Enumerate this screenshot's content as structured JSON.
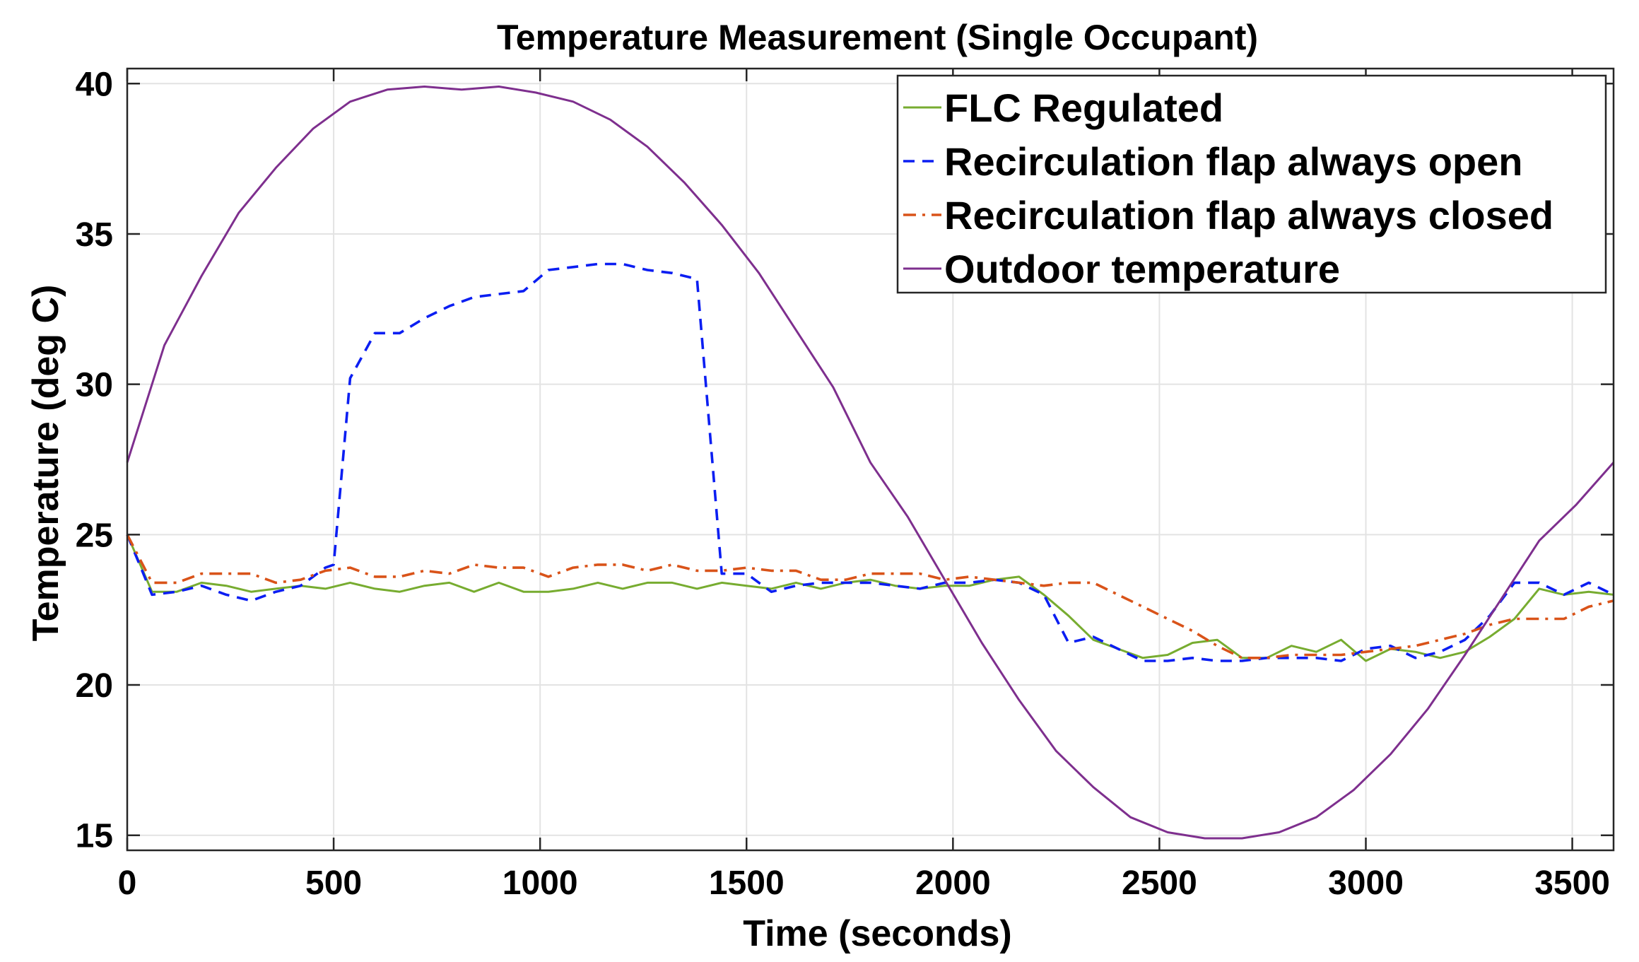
{
  "chart_data": {
    "type": "line",
    "title": "Temperature Measurement (Single Occupant)",
    "xlabel": "Time (seconds)",
    "ylabel": "Temperature (deg C)",
    "xlim": [
      0,
      3600
    ],
    "ylim": [
      14.5,
      40.5
    ],
    "xticks": [
      0,
      500,
      1000,
      1500,
      2000,
      2500,
      3000,
      3500
    ],
    "yticks": [
      15,
      20,
      25,
      30,
      35,
      40
    ],
    "grid": true,
    "legend_position": "top-right",
    "series": [
      {
        "name": "FLC Regulated",
        "color": "#77ac30",
        "style": "solid",
        "x": [
          0,
          60,
          120,
          180,
          240,
          300,
          360,
          420,
          480,
          540,
          600,
          660,
          720,
          780,
          840,
          900,
          960,
          1020,
          1080,
          1140,
          1200,
          1260,
          1320,
          1380,
          1440,
          1500,
          1560,
          1620,
          1680,
          1740,
          1800,
          1860,
          1920,
          1980,
          2040,
          2100,
          2160,
          2220,
          2280,
          2340,
          2400,
          2460,
          2520,
          2580,
          2640,
          2700,
          2760,
          2820,
          2880,
          2940,
          3000,
          3060,
          3120,
          3180,
          3240,
          3300,
          3360,
          3420,
          3480,
          3540,
          3600
        ],
        "y": [
          25.0,
          23.1,
          23.1,
          23.4,
          23.3,
          23.1,
          23.2,
          23.3,
          23.2,
          23.4,
          23.2,
          23.1,
          23.3,
          23.4,
          23.1,
          23.4,
          23.1,
          23.1,
          23.2,
          23.4,
          23.2,
          23.4,
          23.4,
          23.2,
          23.4,
          23.3,
          23.2,
          23.4,
          23.2,
          23.4,
          23.5,
          23.3,
          23.2,
          23.3,
          23.3,
          23.5,
          23.6,
          23.0,
          22.3,
          21.5,
          21.2,
          20.9,
          21.0,
          21.4,
          21.5,
          20.9,
          20.9,
          21.3,
          21.1,
          21.5,
          20.8,
          21.2,
          21.1,
          20.9,
          21.1,
          21.6,
          22.2,
          23.2,
          23.0,
          23.1,
          23.0
        ]
      },
      {
        "name": "Recirculation flap always open",
        "color": "#0b1ef2",
        "style": "dashed",
        "x": [
          0,
          60,
          120,
          180,
          240,
          300,
          360,
          420,
          480,
          500,
          540,
          600,
          660,
          720,
          780,
          840,
          900,
          960,
          1020,
          1080,
          1140,
          1200,
          1260,
          1320,
          1380,
          1440,
          1500,
          1560,
          1620,
          1680,
          1740,
          1800,
          1860,
          1920,
          1980,
          2040,
          2100,
          2160,
          2220,
          2280,
          2340,
          2400,
          2460,
          2520,
          2580,
          2640,
          2700,
          2760,
          2820,
          2880,
          2940,
          3000,
          3060,
          3120,
          3180,
          3240,
          3300,
          3360,
          3420,
          3480,
          3540,
          3600
        ],
        "y": [
          25.0,
          23.0,
          23.1,
          23.3,
          23.0,
          22.8,
          23.1,
          23.3,
          23.9,
          24.0,
          30.2,
          31.7,
          31.7,
          32.2,
          32.6,
          32.9,
          33.0,
          33.1,
          33.8,
          33.9,
          34.0,
          34.0,
          33.8,
          33.7,
          33.5,
          23.7,
          23.7,
          23.1,
          23.3,
          23.4,
          23.4,
          23.4,
          23.3,
          23.2,
          23.4,
          23.4,
          23.5,
          23.4,
          23.0,
          21.4,
          21.6,
          21.2,
          20.8,
          20.8,
          20.9,
          20.8,
          20.8,
          20.9,
          20.9,
          20.9,
          20.8,
          21.2,
          21.3,
          20.9,
          21.1,
          21.5,
          22.3,
          23.4,
          23.4,
          23.0,
          23.4,
          23.0
        ]
      },
      {
        "name": "Recirculation flap always closed",
        "color": "#d95319",
        "style": "dashdot",
        "x": [
          0,
          60,
          120,
          180,
          240,
          300,
          360,
          420,
          480,
          540,
          600,
          660,
          720,
          780,
          840,
          900,
          960,
          1020,
          1080,
          1140,
          1200,
          1260,
          1320,
          1380,
          1440,
          1500,
          1560,
          1620,
          1680,
          1740,
          1800,
          1860,
          1920,
          1980,
          2040,
          2100,
          2160,
          2220,
          2280,
          2340,
          2400,
          2460,
          2520,
          2580,
          2640,
          2700,
          2760,
          2820,
          2880,
          2940,
          3000,
          3060,
          3120,
          3180,
          3240,
          3300,
          3360,
          3420,
          3480,
          3540,
          3600
        ],
        "y": [
          25.0,
          23.4,
          23.4,
          23.7,
          23.7,
          23.7,
          23.4,
          23.5,
          23.8,
          23.9,
          23.6,
          23.6,
          23.8,
          23.7,
          24.0,
          23.9,
          23.9,
          23.6,
          23.9,
          24.0,
          24.0,
          23.8,
          24.0,
          23.8,
          23.8,
          23.9,
          23.8,
          23.8,
          23.5,
          23.5,
          23.7,
          23.7,
          23.7,
          23.5,
          23.6,
          23.5,
          23.4,
          23.3,
          23.4,
          23.4,
          23.0,
          22.6,
          22.2,
          21.8,
          21.3,
          20.9,
          20.9,
          21.0,
          21.0,
          21.0,
          21.1,
          21.2,
          21.3,
          21.5,
          21.7,
          22.0,
          22.2,
          22.2,
          22.2,
          22.6,
          22.8
        ]
      },
      {
        "name": "Outdoor temperature",
        "color": "#7e2f8e",
        "style": "solid",
        "x": [
          0,
          90,
          180,
          270,
          360,
          450,
          540,
          630,
          720,
          810,
          900,
          990,
          1080,
          1170,
          1260,
          1350,
          1440,
          1530,
          1620,
          1710,
          1800,
          1890,
          1980,
          2070,
          2160,
          2250,
          2340,
          2430,
          2520,
          2610,
          2700,
          2790,
          2880,
          2970,
          3060,
          3150,
          3240,
          3330,
          3420,
          3510,
          3600
        ],
        "y": [
          27.4,
          31.3,
          33.6,
          35.7,
          37.2,
          38.5,
          39.4,
          39.8,
          39.9,
          39.8,
          39.9,
          39.7,
          39.4,
          38.8,
          37.9,
          36.7,
          35.3,
          33.7,
          31.8,
          29.9,
          27.4,
          25.6,
          23.5,
          21.4,
          19.5,
          17.8,
          16.6,
          15.6,
          15.1,
          14.9,
          14.9,
          15.1,
          15.6,
          16.5,
          17.7,
          19.2,
          21.0,
          22.9,
          24.8,
          26.0,
          27.4
        ]
      }
    ]
  }
}
